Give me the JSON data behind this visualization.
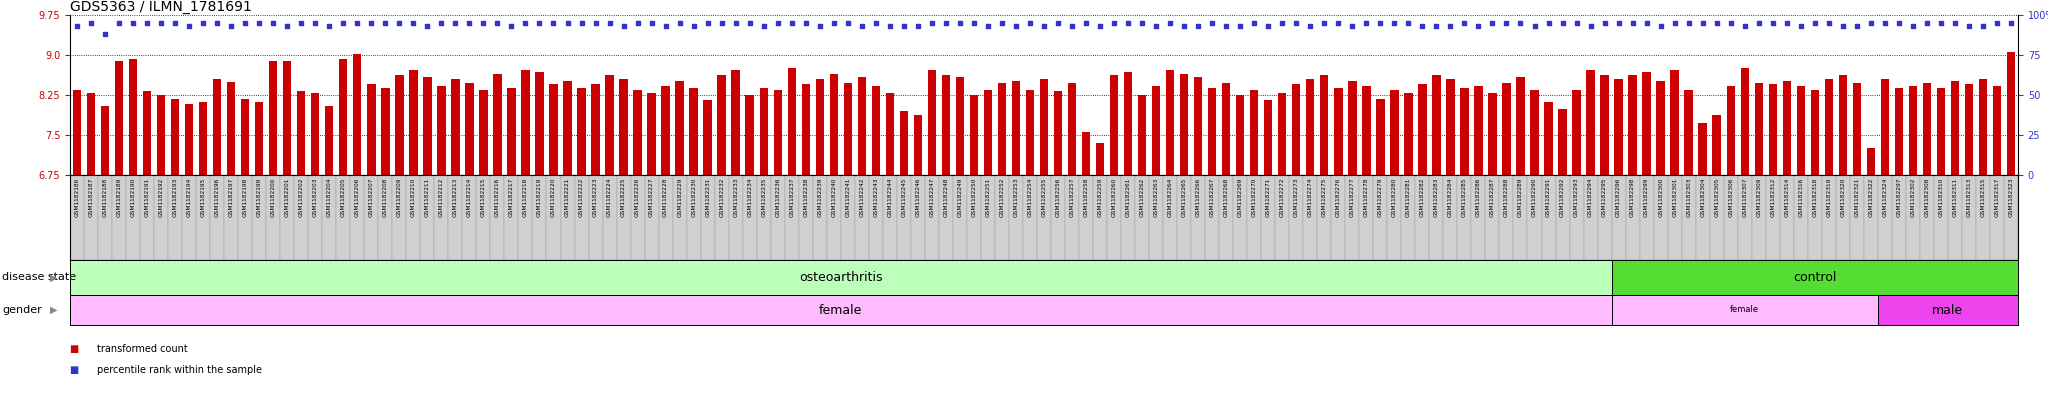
{
  "title": "GDS5363 / ILMN_1781691",
  "samples": [
    "GSM1182186",
    "GSM1182187",
    "GSM1182188",
    "GSM1182189",
    "GSM1182190",
    "GSM1182191",
    "GSM1182192",
    "GSM1182193",
    "GSM1182194",
    "GSM1182195",
    "GSM1182196",
    "GSM1182197",
    "GSM1182198",
    "GSM1182199",
    "GSM1182200",
    "GSM1182201",
    "GSM1182202",
    "GSM1182203",
    "GSM1182204",
    "GSM1182205",
    "GSM1182206",
    "GSM1182207",
    "GSM1182208",
    "GSM1182209",
    "GSM1182210",
    "GSM1182211",
    "GSM1182212",
    "GSM1182213",
    "GSM1182214",
    "GSM1182215",
    "GSM1182216",
    "GSM1182217",
    "GSM1182218",
    "GSM1182219",
    "GSM1182220",
    "GSM1182221",
    "GSM1182222",
    "GSM1182223",
    "GSM1182224",
    "GSM1182225",
    "GSM1182226",
    "GSM1182227",
    "GSM1182228",
    "GSM1182229",
    "GSM1182230",
    "GSM1182231",
    "GSM1182232",
    "GSM1182233",
    "GSM1182234",
    "GSM1182235",
    "GSM1182236",
    "GSM1182237",
    "GSM1182238",
    "GSM1182239",
    "GSM1182240",
    "GSM1182241",
    "GSM1182242",
    "GSM1182243",
    "GSM1182244",
    "GSM1182245",
    "GSM1182246",
    "GSM1182247",
    "GSM1182248",
    "GSM1182249",
    "GSM1182250",
    "GSM1182251",
    "GSM1182252",
    "GSM1182253",
    "GSM1182254",
    "GSM1182255",
    "GSM1182256",
    "GSM1182257",
    "GSM1182258",
    "GSM1182259",
    "GSM1182260",
    "GSM1182261",
    "GSM1182262",
    "GSM1182263",
    "GSM1182264",
    "GSM1182265",
    "GSM1182266",
    "GSM1182267",
    "GSM1182268",
    "GSM1182269",
    "GSM1182270",
    "GSM1182271",
    "GSM1182272",
    "GSM1182273",
    "GSM1182274",
    "GSM1182275",
    "GSM1182276",
    "GSM1182277",
    "GSM1182278",
    "GSM1182279",
    "GSM1182280",
    "GSM1182281",
    "GSM1182282",
    "GSM1182283",
    "GSM1182284",
    "GSM1182285",
    "GSM1182286",
    "GSM1182287",
    "GSM1182288",
    "GSM1182289",
    "GSM1182290",
    "GSM1182291",
    "GSM1182292",
    "GSM1182293",
    "GSM1182294",
    "GSM1182295",
    "GSM1182296",
    "GSM1182298",
    "GSM1182299",
    "GSM1182300",
    "GSM1182301",
    "GSM1182303",
    "GSM1182304",
    "GSM1182305",
    "GSM1182306",
    "GSM1182307",
    "GSM1182309",
    "GSM1182312",
    "GSM1182314",
    "GSM1182316",
    "GSM1182318",
    "GSM1182319",
    "GSM1182320",
    "GSM1182321",
    "GSM1182322",
    "GSM1182324",
    "GSM1182297",
    "GSM1182302",
    "GSM1182308",
    "GSM1182310",
    "GSM1182311",
    "GSM1182313",
    "GSM1182315",
    "GSM1182317",
    "GSM1182323"
  ],
  "bar_values": [
    8.35,
    8.28,
    8.05,
    8.88,
    8.92,
    8.32,
    8.25,
    8.18,
    8.08,
    8.12,
    8.55,
    8.5,
    8.18,
    8.12,
    8.88,
    8.88,
    8.32,
    8.28,
    8.05,
    8.92,
    9.02,
    8.45,
    8.38,
    8.62,
    8.72,
    8.58,
    8.42,
    8.55,
    8.48,
    8.35,
    8.65,
    8.38,
    8.72,
    8.68,
    8.45,
    8.52,
    8.38,
    8.45,
    8.62,
    8.55,
    8.35,
    8.28,
    8.42,
    8.52,
    8.38,
    8.15,
    8.62,
    8.72,
    8.25,
    8.38,
    8.35,
    8.75,
    8.45,
    8.55,
    8.65,
    8.48,
    8.58,
    8.42,
    8.28,
    7.95,
    7.88,
    8.72,
    8.62,
    8.58,
    8.25,
    8.35,
    8.48,
    8.52,
    8.35,
    8.55,
    8.32,
    8.48,
    7.55,
    7.35,
    8.62,
    8.68,
    8.25,
    8.42,
    8.72,
    8.65,
    8.58,
    8.38,
    8.48,
    8.25,
    8.35,
    8.15,
    8.28,
    8.45,
    8.55,
    8.62,
    8.38,
    8.52,
    8.42,
    8.18,
    8.35,
    8.28,
    8.45,
    8.62,
    8.55,
    8.38,
    8.42,
    8.28,
    8.48,
    8.58,
    8.35,
    8.12,
    7.98,
    8.35,
    8.72,
    8.62,
    8.55,
    8.62,
    8.68,
    8.52,
    8.72,
    8.35,
    7.72,
    7.88,
    8.42,
    8.75,
    8.48,
    8.45,
    8.52,
    8.42,
    8.35,
    8.55,
    8.62,
    8.48,
    7.25,
    8.55,
    8.38,
    8.42,
    8.48,
    8.38,
    8.52,
    8.45,
    8.55,
    8.42,
    9.05
  ],
  "percentile_values": [
    93,
    95,
    88,
    95,
    95,
    95,
    95,
    95,
    93,
    95,
    95,
    93,
    95,
    95,
    95,
    93,
    95,
    95,
    93,
    95,
    95,
    95,
    95,
    95,
    95,
    93,
    95,
    95,
    95,
    95,
    95,
    93,
    95,
    95,
    95,
    95,
    95,
    95,
    95,
    93,
    95,
    95,
    93,
    95,
    93,
    95,
    95,
    95,
    95,
    93,
    95,
    95,
    95,
    93,
    95,
    95,
    93,
    95,
    93,
    93,
    93,
    95,
    95,
    95,
    95,
    93,
    95,
    93,
    95,
    93,
    95,
    93,
    95,
    93,
    95,
    95,
    95,
    93,
    95,
    93,
    93,
    95,
    93,
    93,
    95,
    93,
    95,
    95,
    93,
    95,
    95,
    93,
    95,
    95,
    95,
    95,
    93,
    93,
    93,
    95,
    93,
    95,
    95,
    95,
    93,
    95,
    95,
    95,
    93,
    95,
    95,
    95,
    95,
    93,
    95,
    95,
    95,
    95,
    95,
    93,
    95,
    95,
    95,
    93,
    95,
    95,
    93,
    93,
    95,
    95,
    95,
    93,
    95,
    95,
    95,
    93,
    93,
    95,
    95
  ],
  "ylim_left": [
    6.75,
    9.75
  ],
  "ylim_right": [
    0,
    100
  ],
  "yticks_left": [
    6.75,
    7.5,
    8.25,
    9.0,
    9.75
  ],
  "yticks_right": [
    0,
    25,
    50,
    75,
    100
  ],
  "bar_color": "#cc0000",
  "dot_color": "#3333cc",
  "bar_bottom": 6.75,
  "oa_count": 110,
  "ctrl_count": 29,
  "ctrl_female_count": 19,
  "ctrl_male_count": 10,
  "disease_oa_color": "#bbffbb",
  "disease_ctrl_color": "#55dd33",
  "gender_female_color": "#ffbbff",
  "gender_male_color": "#ee44ee",
  "left_label_disease": "disease state",
  "left_label_gender": "gender",
  "legend_items": [
    {
      "label": "transformed count",
      "color": "#cc0000"
    },
    {
      "label": "percentile rank within the sample",
      "color": "#3333cc"
    }
  ],
  "title_fontsize": 10,
  "tick_fontsize": 7,
  "label_fontsize": 8,
  "annotation_fontsize": 9,
  "xlabel_fontsize": 4.2
}
